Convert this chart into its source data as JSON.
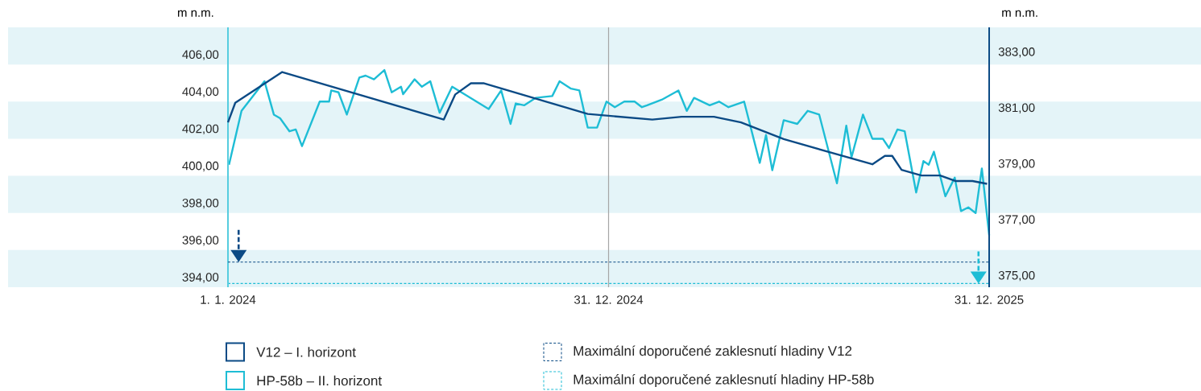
{
  "chart_data": {
    "type": "line",
    "ylabel": "m n.m.",
    "y2label": "m n.m.",
    "xlim": [
      "2024-01-01",
      "2025-12-31"
    ],
    "xticks": [
      {
        "value": "2024-01-01",
        "label": "1. 1. 2024"
      },
      {
        "value": "2024-12-31",
        "label": "31. 12. 2024"
      },
      {
        "value": "2025-12-31",
        "label": "31. 12. 2025"
      }
    ],
    "ylim": [
      393.5,
      407.5
    ],
    "yticks": [
      {
        "value": 394,
        "label": "394,00"
      },
      {
        "value": 396,
        "label": "396,00"
      },
      {
        "value": 398,
        "label": "398,00"
      },
      {
        "value": 400,
        "label": "400,00"
      },
      {
        "value": 402,
        "label": "402,00"
      },
      {
        "value": 404,
        "label": "404,00"
      },
      {
        "value": 406,
        "label": "406,00"
      }
    ],
    "y2lim": [
      374.6,
      383.9
    ],
    "y2ticks": [
      {
        "value": 375,
        "label": "375,00"
      },
      {
        "value": 377,
        "label": "377,00"
      },
      {
        "value": 379,
        "label": "379,00"
      },
      {
        "value": 381,
        "label": "381,00"
      },
      {
        "value": 383,
        "label": "383,00"
      }
    ],
    "series": [
      {
        "name": "V12 – I. horizont",
        "color": "#0b4a85",
        "axis": "y2",
        "line_style": "solid",
        "x": [
          "2024-01-01",
          "2024-01-08",
          "2024-02-22",
          "2024-07-26",
          "2024-08-06",
          "2024-08-21",
          "2024-09-02",
          "2024-12-11",
          "2025-02-11",
          "2025-03-11",
          "2025-04-11",
          "2025-05-07",
          "2025-06-17",
          "2025-09-10",
          "2025-09-22",
          "2025-09-29",
          "2025-10-08",
          "2025-10-27",
          "2025-11-14",
          "2025-11-29",
          "2025-12-15",
          "2025-12-29"
        ],
        "values": [
          380.5,
          381.2,
          382.3,
          380.6,
          381.5,
          381.9,
          381.9,
          380.8,
          380.6,
          380.7,
          380.7,
          380.5,
          379.9,
          379.0,
          379.3,
          379.3,
          378.8,
          378.6,
          378.6,
          378.4,
          378.4,
          378.3
        ]
      },
      {
        "name": "HP-58b – II. horizont",
        "color": "#1ebdd5",
        "axis": "y",
        "line_style": "solid",
        "x": [
          "2024-01-02",
          "2024-01-14",
          "2024-02-05",
          "2024-02-14",
          "2024-02-20",
          "2024-02-29",
          "2024-03-06",
          "2024-03-12",
          "2024-03-29",
          "2024-04-07",
          "2024-04-09",
          "2024-04-16",
          "2024-04-24",
          "2024-05-06",
          "2024-05-12",
          "2024-05-20",
          "2024-05-30",
          "2024-06-06",
          "2024-06-15",
          "2024-06-17",
          "2024-06-28",
          "2024-07-05",
          "2024-07-13",
          "2024-07-22",
          "2024-08-03",
          "2024-09-07",
          "2024-09-19",
          "2024-09-28",
          "2024-10-03",
          "2024-10-11",
          "2024-10-22",
          "2024-11-07",
          "2024-11-14",
          "2024-11-25",
          "2024-12-03",
          "2024-12-11",
          "2024-12-20",
          "2024-12-29",
          "2025-01-06",
          "2025-01-15",
          "2025-01-25",
          "2025-02-01",
          "2025-02-06",
          "2025-02-20",
          "2025-03-08",
          "2025-03-16",
          "2025-03-23",
          "2025-04-07",
          "2025-04-16",
          "2025-04-25",
          "2025-05-10",
          "2025-05-25",
          "2025-05-31",
          "2025-06-06",
          "2025-06-17",
          "2025-06-30",
          "2025-07-10",
          "2025-07-21",
          "2025-08-07",
          "2025-08-16",
          "2025-08-21",
          "2025-09-01",
          "2025-09-10",
          "2025-09-20",
          "2025-09-26",
          "2025-10-04",
          "2025-10-11",
          "2025-10-22",
          "2025-10-29",
          "2025-11-03",
          "2025-11-08",
          "2025-11-19",
          "2025-11-28",
          "2025-12-04",
          "2025-12-11",
          "2025-12-18",
          "2025-12-24",
          "2025-12-31"
        ],
        "values": [
          400.1,
          403.0,
          404.6,
          402.8,
          402.6,
          401.9,
          402.0,
          401.1,
          403.5,
          403.5,
          404.1,
          404.0,
          402.8,
          404.8,
          404.9,
          404.7,
          405.2,
          404.0,
          404.3,
          403.9,
          404.7,
          404.3,
          404.6,
          402.9,
          404.3,
          403.1,
          404.1,
          402.3,
          403.4,
          403.3,
          403.7,
          403.8,
          404.6,
          404.2,
          404.1,
          402.1,
          402.1,
          403.5,
          403.2,
          403.5,
          403.5,
          403.2,
          403.3,
          403.6,
          404.1,
          403.0,
          403.7,
          403.3,
          403.5,
          403.2,
          403.5,
          400.2,
          401.7,
          399.8,
          402.5,
          402.3,
          403.0,
          402.8,
          399.1,
          402.2,
          400.5,
          402.8,
          401.5,
          401.5,
          401.0,
          402.0,
          401.9,
          398.6,
          400.3,
          400.1,
          400.8,
          398.4,
          399.4,
          397.6,
          397.8,
          397.5,
          399.9,
          396.3
        ]
      }
    ],
    "ref_lines": [
      {
        "axis": "y2",
        "value": 375.5,
        "label": "Maximální doporučené zaklesnutí hladiny V12",
        "color": "#0b4a85",
        "line_style": "dashed"
      },
      {
        "axis": "y",
        "value": 393.7,
        "label": "Maximální doporučené zaklesnutí hladiny HP-58b",
        "color": "#1ebdd5",
        "line_style": "dashed"
      },
      {
        "axis": "x",
        "value": "2024-12-31",
        "color": "#a6a6a6",
        "line_style": "solid"
      }
    ],
    "bands": [
      {
        "axis": "y",
        "from": 393.5,
        "to": 395.5,
        "color": "#e4f4f8"
      },
      {
        "axis": "y",
        "from": 397.5,
        "to": 399.5,
        "color": "#e4f4f8"
      },
      {
        "axis": "y",
        "from": 401.5,
        "to": 403.5,
        "color": "#e4f4f8"
      },
      {
        "axis": "y",
        "from": 405.5,
        "to": 407.5,
        "color": "#e4f4f8"
      }
    ],
    "legend": "bottom"
  }
}
